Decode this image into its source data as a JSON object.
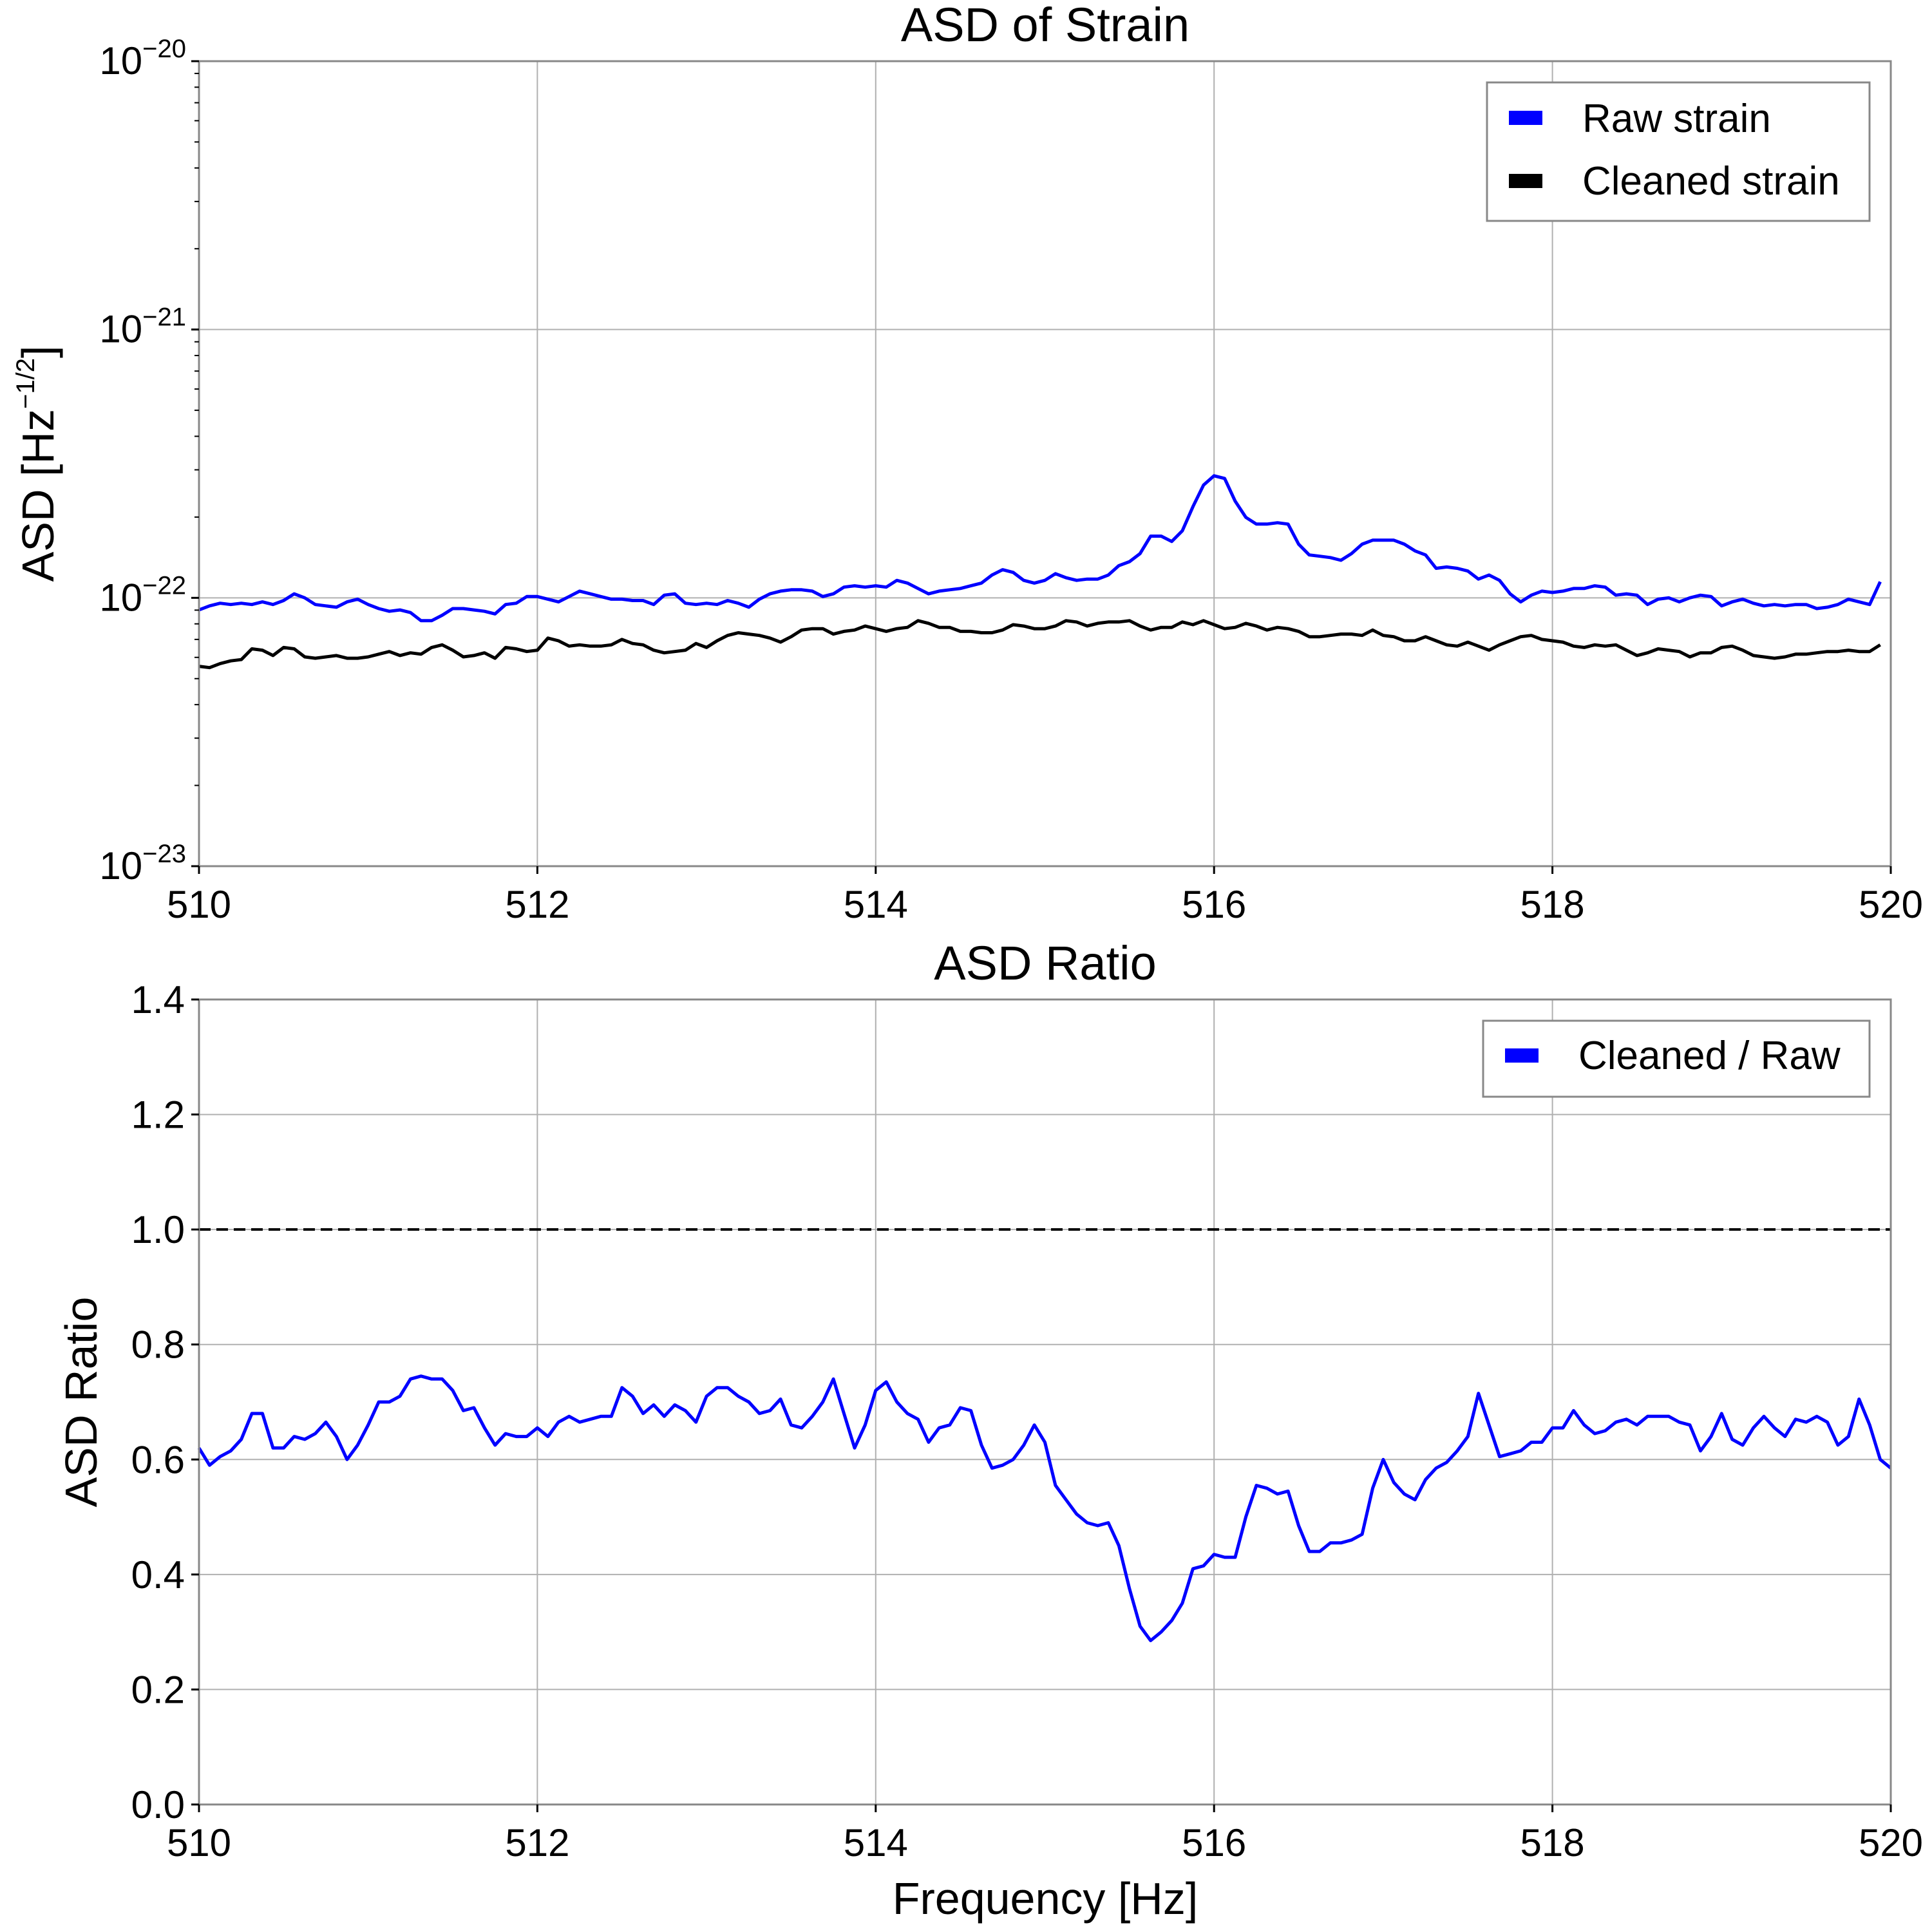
{
  "chart_data": [
    {
      "type": "line",
      "title": "ASD of Strain",
      "xlabel": "",
      "ylabel": "ASD [Hz",
      "ylabel_sup": "−1/2",
      "ylabel_close": "]",
      "yscale": "log",
      "xlim": [
        510,
        520
      ],
      "ylim": [
        1e-23,
        1e-20
      ],
      "grid": true,
      "legend_position": "top-right",
      "x_ticks": [
        "510",
        "512",
        "514",
        "516",
        "518",
        "520"
      ],
      "y_ticks": [
        {
          "base": "10",
          "exp": "−20"
        },
        {
          "base": "10",
          "exp": "−21"
        },
        {
          "base": "10",
          "exp": "−22"
        },
        {
          "base": "10",
          "exp": "−23"
        }
      ],
      "x_start": 510,
      "x_step": 0.0625,
      "series": [
        {
          "name": "Raw strain",
          "color": "#0000ff",
          "values_exp": [
            -22.045,
            -22.03,
            -22.02,
            -22.025,
            -22.02,
            -22.025,
            -22.015,
            -22.025,
            -22.01,
            -21.985,
            -22.0,
            -22.025,
            -22.03,
            -22.035,
            -22.015,
            -22.005,
            -22.025,
            -22.04,
            -22.05,
            -22.045,
            -22.055,
            -22.085,
            -22.085,
            -22.065,
            -22.04,
            -22.04,
            -22.045,
            -22.05,
            -22.06,
            -22.025,
            -22.02,
            -21.995,
            -21.995,
            -22.005,
            -22.015,
            -21.995,
            -21.975,
            -21.985,
            -21.995,
            -22.005,
            -22.005,
            -22.01,
            -22.01,
            -22.025,
            -21.99,
            -21.985,
            -22.02,
            -22.025,
            -22.02,
            -22.025,
            -22.01,
            -22.02,
            -22.035,
            -22.005,
            -21.985,
            -21.975,
            -21.97,
            -21.97,
            -21.975,
            -21.995,
            -21.985,
            -21.96,
            -21.955,
            -21.96,
            -21.955,
            -21.96,
            -21.935,
            -21.945,
            -21.965,
            -21.985,
            -21.975,
            -21.97,
            -21.965,
            -21.955,
            -21.945,
            -21.915,
            -21.895,
            -21.905,
            -21.935,
            -21.945,
            -21.935,
            -21.91,
            -21.925,
            -21.935,
            -21.93,
            -21.93,
            -21.915,
            -21.88,
            -21.865,
            -21.835,
            -21.77,
            -21.77,
            -21.79,
            -21.75,
            -21.66,
            -21.58,
            -21.545,
            -21.555,
            -21.64,
            -21.7,
            -21.725,
            -21.725,
            -21.72,
            -21.725,
            -21.8,
            -21.84,
            -21.845,
            -21.85,
            -21.86,
            -21.835,
            -21.8,
            -21.785,
            -21.785,
            -21.785,
            -21.8,
            -21.825,
            -21.84,
            -21.89,
            -21.885,
            -21.89,
            -21.9,
            -21.93,
            -21.915,
            -21.935,
            -21.985,
            -22.015,
            -21.99,
            -21.975,
            -21.98,
            -21.975,
            -21.965,
            -21.965,
            -21.955,
            -21.96,
            -21.99,
            -21.985,
            -21.99,
            -22.025,
            -22.005,
            -22.0,
            -22.015,
            -22.0,
            -21.99,
            -21.995,
            -22.03,
            -22.015,
            -22.005,
            -22.02,
            -22.03,
            -22.025,
            -22.03,
            -22.025,
            -22.025,
            -22.04,
            -22.035,
            -22.025,
            -22.005,
            -22.015,
            -22.025,
            -21.94
          ]
        },
        {
          "name": "Cleaned strain",
          "color": "#000000",
          "values_exp": [
            -22.255,
            -22.26,
            -22.245,
            -22.235,
            -22.23,
            -22.19,
            -22.195,
            -22.215,
            -22.185,
            -22.19,
            -22.22,
            -22.225,
            -22.22,
            -22.215,
            -22.225,
            -22.225,
            -22.22,
            -22.21,
            -22.2,
            -22.215,
            -22.205,
            -22.21,
            -22.185,
            -22.175,
            -22.195,
            -22.22,
            -22.215,
            -22.205,
            -22.225,
            -22.185,
            -22.19,
            -22.2,
            -22.195,
            -22.15,
            -22.16,
            -22.18,
            -22.175,
            -22.18,
            -22.18,
            -22.175,
            -22.155,
            -22.17,
            -22.175,
            -22.195,
            -22.205,
            -22.2,
            -22.195,
            -22.17,
            -22.185,
            -22.16,
            -22.14,
            -22.13,
            -22.135,
            -22.14,
            -22.15,
            -22.165,
            -22.145,
            -22.12,
            -22.115,
            -22.115,
            -22.135,
            -22.125,
            -22.12,
            -22.105,
            -22.115,
            -22.125,
            -22.115,
            -22.11,
            -22.085,
            -22.095,
            -22.11,
            -22.11,
            -22.125,
            -22.125,
            -22.13,
            -22.13,
            -22.12,
            -22.1,
            -22.105,
            -22.115,
            -22.115,
            -22.105,
            -22.085,
            -22.09,
            -22.105,
            -22.095,
            -22.09,
            -22.09,
            -22.085,
            -22.105,
            -22.12,
            -22.11,
            -22.11,
            -22.09,
            -22.1,
            -22.085,
            -22.1,
            -22.115,
            -22.11,
            -22.095,
            -22.105,
            -22.12,
            -22.11,
            -22.115,
            -22.125,
            -22.145,
            -22.145,
            -22.14,
            -22.135,
            -22.135,
            -22.14,
            -22.12,
            -22.14,
            -22.145,
            -22.16,
            -22.16,
            -22.145,
            -22.16,
            -22.175,
            -22.18,
            -22.165,
            -22.18,
            -22.195,
            -22.175,
            -22.16,
            -22.145,
            -22.14,
            -22.155,
            -22.16,
            -22.165,
            -22.18,
            -22.185,
            -22.175,
            -22.18,
            -22.175,
            -22.195,
            -22.215,
            -22.205,
            -22.19,
            -22.195,
            -22.2,
            -22.22,
            -22.205,
            -22.205,
            -22.185,
            -22.18,
            -22.195,
            -22.215,
            -22.22,
            -22.225,
            -22.22,
            -22.21,
            -22.21,
            -22.205,
            -22.2,
            -22.2,
            -22.195,
            -22.2,
            -22.2,
            -22.175
          ]
        }
      ]
    },
    {
      "type": "line",
      "title": "ASD Ratio",
      "xlabel": "Frequency [Hz]",
      "ylabel": "ASD Ratio",
      "xlim": [
        510,
        520
      ],
      "ylim": [
        0.0,
        1.4
      ],
      "grid": true,
      "legend_position": "top-right",
      "reference_line": {
        "y": 1.0,
        "style": "dashed",
        "color": "#000000"
      },
      "x_ticks": [
        "510",
        "512",
        "514",
        "516",
        "518",
        "520"
      ],
      "y_ticks": [
        "0.0",
        "0.2",
        "0.4",
        "0.6",
        "0.8",
        "1.0",
        "1.2",
        "1.4"
      ],
      "x_start": 510,
      "x_step": 0.0625,
      "series": [
        {
          "name": "Cleaned / Raw",
          "color": "#0000ff",
          "values": [
            0.62,
            0.59,
            0.605,
            0.615,
            0.635,
            0.68,
            0.68,
            0.62,
            0.62,
            0.64,
            0.635,
            0.645,
            0.665,
            0.64,
            0.6,
            0.625,
            0.66,
            0.7,
            0.7,
            0.71,
            0.74,
            0.745,
            0.74,
            0.74,
            0.72,
            0.685,
            0.69,
            0.655,
            0.625,
            0.645,
            0.64,
            0.64,
            0.655,
            0.64,
            0.665,
            0.675,
            0.665,
            0.67,
            0.675,
            0.675,
            0.725,
            0.71,
            0.68,
            0.695,
            0.675,
            0.695,
            0.685,
            0.665,
            0.71,
            0.725,
            0.725,
            0.71,
            0.7,
            0.68,
            0.685,
            0.705,
            0.66,
            0.655,
            0.675,
            0.7,
            0.74,
            0.68,
            0.62,
            0.66,
            0.72,
            0.735,
            0.7,
            0.68,
            0.67,
            0.63,
            0.655,
            0.66,
            0.69,
            0.685,
            0.625,
            0.585,
            0.59,
            0.6,
            0.625,
            0.66,
            0.63,
            0.555,
            0.53,
            0.505,
            0.49,
            0.485,
            0.49,
            0.45,
            0.375,
            0.31,
            0.285,
            0.3,
            0.32,
            0.35,
            0.41,
            0.415,
            0.435,
            0.43,
            0.43,
            0.5,
            0.555,
            0.55,
            0.54,
            0.545,
            0.485,
            0.44,
            0.44,
            0.455,
            0.455,
            0.46,
            0.47,
            0.55,
            0.6,
            0.56,
            0.54,
            0.53,
            0.565,
            0.585,
            0.595,
            0.615,
            0.64,
            0.715,
            0.66,
            0.605,
            0.61,
            0.615,
            0.63,
            0.63,
            0.655,
            0.655,
            0.685,
            0.66,
            0.645,
            0.65,
            0.665,
            0.67,
            0.66,
            0.675,
            0.675,
            0.675,
            0.665,
            0.66,
            0.615,
            0.64,
            0.68,
            0.635,
            0.625,
            0.655,
            0.675,
            0.655,
            0.64,
            0.67,
            0.665,
            0.675,
            0.665,
            0.625,
            0.64,
            0.705,
            0.66,
            0.6,
            0.585
          ]
        }
      ]
    }
  ]
}
